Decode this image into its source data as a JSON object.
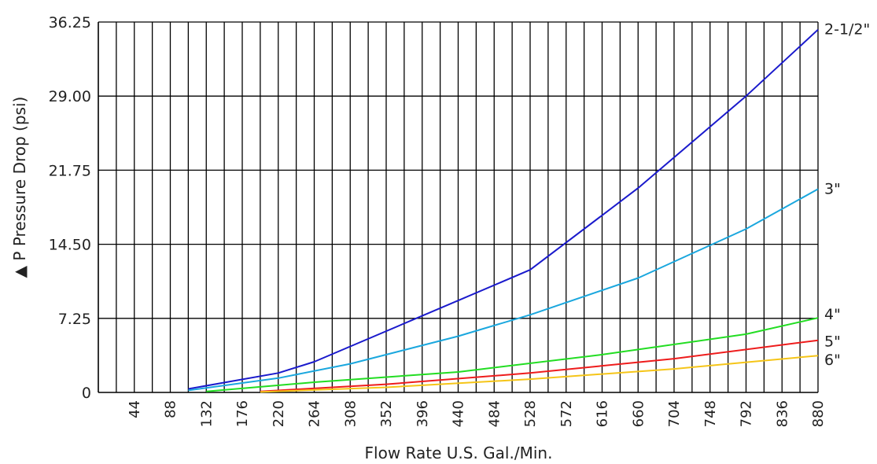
{
  "chart_data": {
    "type": "line",
    "xlabel": "Flow Rate U.S. Gal./Min.",
    "ylabel": "▲ P   Pressure Drop (psi)",
    "x_ticks": [
      44,
      88,
      132,
      176,
      220,
      264,
      308,
      352,
      396,
      440,
      484,
      528,
      572,
      616,
      660,
      704,
      748,
      792,
      836,
      880
    ],
    "y_ticks": [
      0,
      7.25,
      14.5,
      21.75,
      29.0,
      36.25
    ],
    "y_tick_labels": [
      "0",
      "7.25",
      "14.50",
      "21.75",
      "29.00",
      "36.25"
    ],
    "xlim": [
      0,
      880
    ],
    "ylim": [
      0,
      36.25
    ],
    "grid": true,
    "legend": "labels at right end of each line",
    "series": [
      {
        "name": "2-1/2\"",
        "color": "#1a1acc",
        "x": [
          110,
          220,
          264,
          396,
          528,
          660,
          792,
          880
        ],
        "y": [
          0.35,
          1.9,
          3.0,
          7.5,
          12.0,
          20.0,
          29.0,
          35.5
        ]
      },
      {
        "name": "3\"",
        "color": "#1aa7de",
        "x": [
          110,
          220,
          308,
          440,
          528,
          660,
          792,
          880
        ],
        "y": [
          0.2,
          1.4,
          2.8,
          5.5,
          7.6,
          11.2,
          16.0,
          19.9
        ]
      },
      {
        "name": "4\"",
        "color": "#22dd22",
        "x": [
          132,
          264,
          440,
          616,
          792,
          880
        ],
        "y": [
          0.1,
          1.0,
          2.0,
          3.7,
          5.7,
          7.3
        ]
      },
      {
        "name": "5\"",
        "color": "#ee1c1c",
        "x": [
          198,
          352,
          528,
          704,
          880
        ],
        "y": [
          0.1,
          0.8,
          1.9,
          3.3,
          5.1
        ]
      },
      {
        "name": "6\"",
        "color": "#f5c518",
        "x": [
          198,
          352,
          528,
          704,
          880
        ],
        "y": [
          0.05,
          0.5,
          1.3,
          2.3,
          3.6
        ]
      }
    ]
  }
}
